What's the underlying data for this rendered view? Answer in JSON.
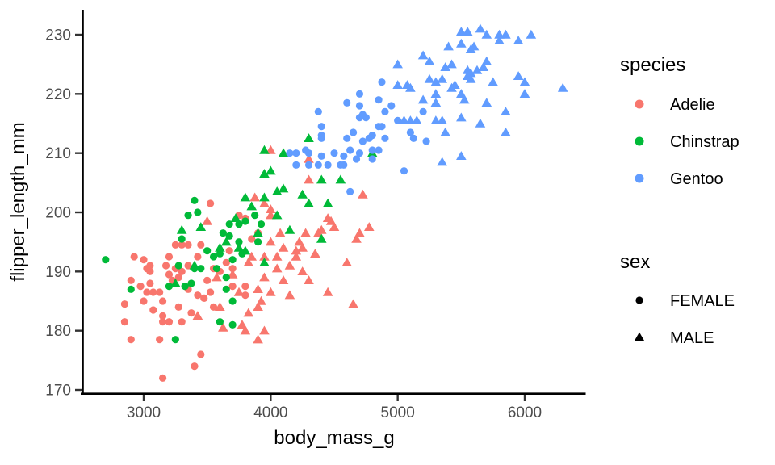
{
  "chart_data": {
    "type": "scatter",
    "title": "",
    "xlabel": "body_mass_g",
    "ylabel": "flipper_length_mm",
    "xlim": [
      2525,
      6475
    ],
    "ylim": [
      169.5,
      234.3
    ],
    "x_ticks": [
      3000,
      4000,
      5000,
      6000
    ],
    "y_ticks": [
      170,
      180,
      190,
      200,
      210,
      220,
      230
    ],
    "grid": false,
    "legend_position": "right",
    "legend_titles": {
      "color": "species",
      "shape": "sex"
    },
    "species_order": [
      "Adelie",
      "Chinstrap",
      "Gentoo"
    ],
    "sex_order": [
      "FEMALE",
      "MALE"
    ],
    "colors": {
      "Adelie": "#F8766D",
      "Chinstrap": "#00BA38",
      "Gentoo": "#619CFF"
    },
    "shapes": {
      "FEMALE": "circle",
      "MALE": "triangle"
    },
    "point_format": "[body_mass_g, flipper_length_mm, species_index, sex_index]",
    "points": [
      [
        3525,
        201.5,
        0,
        0
      ],
      [
        3250,
        194.5,
        0,
        0
      ],
      [
        3300,
        194.5,
        0,
        0
      ],
      [
        3350,
        194.5,
        0,
        0
      ],
      [
        3450,
        194.5,
        0,
        0
      ],
      [
        3200,
        192.5,
        0,
        0
      ],
      [
        3425,
        192.5,
        0,
        0
      ],
      [
        2925,
        192.5,
        0,
        0
      ],
      [
        3000,
        192,
        0,
        0
      ],
      [
        3050,
        191,
        0,
        0
      ],
      [
        3175,
        191,
        0,
        0
      ],
      [
        3350,
        191,
        0,
        0
      ],
      [
        3750,
        199.5,
        0,
        0
      ],
      [
        3800,
        199,
        0,
        0
      ],
      [
        3850,
        195.5,
        0,
        0
      ],
      [
        3900,
        196.5,
        0,
        0
      ],
      [
        3675,
        193.5,
        0,
        0
      ],
      [
        2900,
        188.5,
        0,
        0
      ],
      [
        3025,
        190.5,
        0,
        0
      ],
      [
        3050,
        190,
        0,
        0
      ],
      [
        3050,
        188,
        0,
        0
      ],
      [
        3200,
        189.5,
        0,
        0
      ],
      [
        3250,
        190.5,
        0,
        0
      ],
      [
        3300,
        190,
        0,
        0
      ],
      [
        3275,
        189,
        0,
        0
      ],
      [
        3025,
        186.5,
        0,
        0
      ],
      [
        3075,
        186.5,
        0,
        0
      ],
      [
        3125,
        186.5,
        0,
        0
      ],
      [
        3000,
        185,
        0,
        0
      ],
      [
        3150,
        185,
        0,
        0
      ],
      [
        2850,
        184.5,
        0,
        0
      ],
      [
        3075,
        183.5,
        0,
        0
      ],
      [
        3150,
        182.5,
        0,
        0
      ],
      [
        3200,
        181.5,
        0,
        0
      ],
      [
        3150,
        181.5,
        0,
        0
      ],
      [
        3300,
        181.5,
        0,
        0
      ],
      [
        2850,
        181.5,
        0,
        0
      ],
      [
        2900,
        178.5,
        0,
        0
      ],
      [
        3450,
        176,
        0,
        0
      ],
      [
        3400,
        174,
        0,
        0
      ],
      [
        3150,
        172,
        0,
        0
      ],
      [
        3700,
        187.5,
        0,
        0
      ],
      [
        3800,
        187.5,
        0,
        0
      ],
      [
        3800,
        186,
        0,
        0
      ],
      [
        3350,
        187,
        0,
        0
      ],
      [
        3425,
        186,
        0,
        0
      ],
      [
        3550,
        190.5,
        0,
        0
      ],
      [
        3275,
        184,
        0,
        0
      ],
      [
        3375,
        183,
        0,
        0
      ],
      [
        3475,
        185.5,
        0,
        0
      ],
      [
        3600,
        190,
        0,
        0
      ],
      [
        3700,
        190.5,
        0,
        0
      ],
      [
        2975,
        187.5,
        0,
        0
      ],
      [
        3225,
        188.5,
        0,
        0
      ],
      [
        3500,
        188.5,
        0,
        0
      ],
      [
        3525,
        186.5,
        0,
        0
      ],
      [
        3650,
        191.5,
        0,
        0
      ],
      [
        3125,
        178.5,
        0,
        0
      ],
      [
        3550,
        184,
        0,
        0
      ],
      [
        4000,
        210.5,
        0,
        1
      ],
      [
        4300,
        209,
        0,
        1
      ],
      [
        4300,
        205.5,
        0,
        1
      ],
      [
        3875,
        202.5,
        0,
        1
      ],
      [
        3950,
        201.5,
        0,
        1
      ],
      [
        4000,
        200.5,
        0,
        1
      ],
      [
        4000,
        199.5,
        0,
        1
      ],
      [
        4450,
        199,
        0,
        1
      ],
      [
        4475,
        198.5,
        0,
        1
      ],
      [
        4500,
        197.5,
        0,
        1
      ],
      [
        4725,
        203,
        0,
        1
      ],
      [
        4775,
        197.5,
        0,
        1
      ],
      [
        4700,
        196.5,
        0,
        1
      ],
      [
        4675,
        195.5,
        0,
        1
      ],
      [
        4600,
        191.5,
        0,
        1
      ],
      [
        4000,
        195,
        0,
        1
      ],
      [
        4075,
        196.5,
        0,
        1
      ],
      [
        4275,
        196.5,
        0,
        1
      ],
      [
        4375,
        196.5,
        0,
        1
      ],
      [
        4400,
        197,
        0,
        1
      ],
      [
        4225,
        195,
        0,
        1
      ],
      [
        4250,
        194,
        0,
        1
      ],
      [
        4200,
        193.5,
        0,
        1
      ],
      [
        3950,
        192.5,
        0,
        1
      ],
      [
        4050,
        192.5,
        0,
        1
      ],
      [
        4200,
        192.5,
        0,
        1
      ],
      [
        3825,
        191.5,
        0,
        1
      ],
      [
        3500,
        198.5,
        0,
        1
      ],
      [
        3425,
        182.5,
        0,
        1
      ],
      [
        3950,
        189,
        0,
        1
      ],
      [
        4150,
        191,
        0,
        1
      ],
      [
        4250,
        190,
        0,
        1
      ],
      [
        4100,
        188.5,
        0,
        1
      ],
      [
        4300,
        188.5,
        0,
        1
      ],
      [
        4450,
        186.5,
        0,
        1
      ],
      [
        3925,
        185,
        0,
        1
      ],
      [
        3900,
        184,
        0,
        1
      ],
      [
        3600,
        184,
        0,
        1
      ],
      [
        3775,
        181,
        0,
        1
      ],
      [
        3625,
        180.5,
        0,
        1
      ],
      [
        3800,
        180,
        0,
        1
      ],
      [
        3950,
        180,
        0,
        1
      ],
      [
        3900,
        178.5,
        0,
        1
      ],
      [
        4650,
        184.5,
        0,
        1
      ],
      [
        3700,
        189.5,
        0,
        1
      ],
      [
        3850,
        192.5,
        0,
        1
      ],
      [
        4100,
        194,
        0,
        1
      ],
      [
        4050,
        190.5,
        0,
        1
      ],
      [
        3750,
        186.5,
        0,
        1
      ],
      [
        3900,
        187,
        0,
        1
      ],
      [
        4150,
        186,
        0,
        1
      ],
      [
        3825,
        183,
        0,
        1
      ],
      [
        4000,
        186.5,
        0,
        1
      ],
      [
        3575,
        189,
        0,
        1
      ],
      [
        4350,
        193,
        0,
        1
      ],
      [
        2700,
        192,
        1,
        0
      ],
      [
        3400,
        202,
        1,
        0
      ],
      [
        3425,
        200,
        1,
        0
      ],
      [
        3350,
        199.5,
        1,
        0
      ],
      [
        3500,
        193.5,
        1,
        0
      ],
      [
        3275,
        191,
        1,
        0
      ],
      [
        3875,
        199.5,
        1,
        0
      ],
      [
        3925,
        198,
        1,
        0
      ],
      [
        3675,
        198,
        1,
        0
      ],
      [
        3750,
        198,
        1,
        0
      ],
      [
        3800,
        198.5,
        1,
        0
      ],
      [
        3625,
        196.5,
        1,
        0
      ],
      [
        3675,
        196,
        1,
        0
      ],
      [
        3750,
        195,
        1,
        0
      ],
      [
        3900,
        195,
        1,
        0
      ],
      [
        3600,
        193,
        1,
        0
      ],
      [
        3700,
        192,
        1,
        0
      ],
      [
        3575,
        190.5,
        1,
        0
      ],
      [
        3650,
        189,
        1,
        0
      ],
      [
        3650,
        187,
        1,
        0
      ],
      [
        3700,
        185,
        1,
        0
      ],
      [
        3600,
        181.5,
        1,
        0
      ],
      [
        3700,
        181,
        1,
        0
      ],
      [
        3250,
        178.5,
        1,
        0
      ],
      [
        2900,
        187,
        1,
        0
      ],
      [
        3400,
        190.5,
        1,
        0
      ],
      [
        3450,
        190.5,
        1,
        0
      ],
      [
        3200,
        187.5,
        1,
        0
      ],
      [
        3325,
        187.5,
        1,
        0
      ],
      [
        3375,
        188,
        1,
        0
      ],
      [
        3550,
        192.5,
        1,
        0
      ],
      [
        3300,
        195.5,
        1,
        0
      ],
      [
        3775,
        193,
        1,
        0
      ],
      [
        4300,
        212.5,
        1,
        1
      ],
      [
        3950,
        210.5,
        1,
        1
      ],
      [
        4100,
        210,
        1,
        1
      ],
      [
        4000,
        207,
        1,
        1
      ],
      [
        3950,
        206.5,
        1,
        1
      ],
      [
        4400,
        205.5,
        1,
        1
      ],
      [
        4550,
        205.5,
        1,
        1
      ],
      [
        4050,
        203.5,
        1,
        1
      ],
      [
        4100,
        204,
        1,
        1
      ],
      [
        3800,
        202.5,
        1,
        1
      ],
      [
        4300,
        201.5,
        1,
        1
      ],
      [
        4450,
        201.5,
        1,
        1
      ],
      [
        4800,
        210,
        1,
        1
      ],
      [
        3300,
        197,
        1,
        1
      ],
      [
        3450,
        197.5,
        1,
        1
      ],
      [
        4150,
        197,
        1,
        1
      ],
      [
        4400,
        195.5,
        1,
        1
      ],
      [
        3750,
        194,
        1,
        1
      ],
      [
        3800,
        193.5,
        1,
        1
      ],
      [
        3950,
        191.5,
        1,
        1
      ],
      [
        3400,
        191,
        1,
        1
      ],
      [
        3250,
        188,
        1,
        1
      ],
      [
        3900,
        196.5,
        1,
        1
      ],
      [
        4050,
        199.5,
        1,
        1
      ],
      [
        3650,
        195,
        1,
        1
      ],
      [
        3850,
        201,
        1,
        1
      ],
      [
        4250,
        203,
        1,
        1
      ],
      [
        3725,
        199,
        1,
        1
      ],
      [
        3600,
        194,
        1,
        1
      ],
      [
        3950,
        202.5,
        1,
        1
      ],
      [
        4375,
        217,
        2,
        0
      ],
      [
        4400,
        214.5,
        2,
        0
      ],
      [
        4400,
        213,
        2,
        0
      ],
      [
        4875,
        222,
        2,
        0
      ],
      [
        4700,
        220,
        2,
        0
      ],
      [
        4700,
        218,
        2,
        0
      ],
      [
        4600,
        218.5,
        2,
        0
      ],
      [
        4850,
        219,
        2,
        0
      ],
      [
        4950,
        218,
        2,
        0
      ],
      [
        4900,
        217,
        2,
        0
      ],
      [
        4700,
        216,
        2,
        0
      ],
      [
        4750,
        216,
        2,
        0
      ],
      [
        4725,
        216.5,
        2,
        0
      ],
      [
        4850,
        214.5,
        2,
        0
      ],
      [
        4875,
        214.5,
        2,
        0
      ],
      [
        5000,
        215.5,
        2,
        0
      ],
      [
        5200,
        217,
        2,
        0
      ],
      [
        5100,
        213.5,
        2,
        0
      ],
      [
        4650,
        213.5,
        2,
        0
      ],
      [
        4800,
        213,
        2,
        0
      ],
      [
        4600,
        212.5,
        2,
        0
      ],
      [
        4725,
        212,
        2,
        0
      ],
      [
        4775,
        212.5,
        2,
        0
      ],
      [
        4900,
        212.5,
        2,
        0
      ],
      [
        5125,
        212.5,
        2,
        0
      ],
      [
        5225,
        212,
        2,
        0
      ],
      [
        4625,
        210.5,
        2,
        0
      ],
      [
        4700,
        210,
        2,
        0
      ],
      [
        4800,
        210.5,
        2,
        0
      ],
      [
        4850,
        210.5,
        2,
        0
      ],
      [
        4575,
        209.5,
        2,
        0
      ],
      [
        4675,
        209,
        2,
        0
      ],
      [
        4800,
        209,
        2,
        0
      ],
      [
        4575,
        208,
        2,
        0
      ],
      [
        5050,
        207,
        2,
        0
      ],
      [
        4625,
        203.5,
        2,
        0
      ],
      [
        4150,
        210,
        2,
        0
      ],
      [
        4200,
        210,
        2,
        0
      ],
      [
        4275,
        210.5,
        2,
        0
      ],
      [
        4300,
        210,
        2,
        0
      ],
      [
        4200,
        208,
        2,
        0
      ],
      [
        4300,
        208,
        2,
        0
      ],
      [
        4375,
        208,
        2,
        0
      ],
      [
        4400,
        209.5,
        2,
        0
      ],
      [
        4450,
        208,
        2,
        0
      ],
      [
        4500,
        210,
        2,
        0
      ],
      [
        4550,
        208,
        2,
        0
      ],
      [
        4400,
        212.5,
        2,
        0
      ],
      [
        5500,
        230.5,
        2,
        1
      ],
      [
        5550,
        230.5,
        2,
        1
      ],
      [
        5400,
        228,
        2,
        1
      ],
      [
        5500,
        228.5,
        2,
        1
      ],
      [
        5575,
        227.5,
        2,
        1
      ],
      [
        5200,
        226.5,
        2,
        1
      ],
      [
        5250,
        225.5,
        2,
        1
      ],
      [
        5000,
        225,
        2,
        1
      ],
      [
        5375,
        224.5,
        2,
        1
      ],
      [
        5425,
        225,
        2,
        1
      ],
      [
        5550,
        224,
        2,
        1
      ],
      [
        5550,
        223,
        2,
        1
      ],
      [
        5250,
        222.5,
        2,
        1
      ],
      [
        5300,
        222,
        2,
        1
      ],
      [
        5350,
        222.5,
        2,
        1
      ],
      [
        5000,
        221.5,
        2,
        1
      ],
      [
        5075,
        221.5,
        2,
        1
      ],
      [
        5100,
        221,
        2,
        1
      ],
      [
        5425,
        221,
        2,
        1
      ],
      [
        5450,
        221.5,
        2,
        1
      ],
      [
        5300,
        220,
        2,
        1
      ],
      [
        5200,
        219,
        2,
        1
      ],
      [
        5300,
        218.5,
        2,
        1
      ],
      [
        5500,
        220,
        2,
        1
      ],
      [
        5525,
        219,
        2,
        1
      ],
      [
        5300,
        215.5,
        2,
        1
      ],
      [
        5350,
        215.5,
        2,
        1
      ],
      [
        5500,
        216,
        2,
        1
      ],
      [
        5050,
        215.5,
        2,
        1
      ],
      [
        5100,
        215.5,
        2,
        1
      ],
      [
        5150,
        215.5,
        2,
        1
      ],
      [
        5375,
        213.5,
        2,
        1
      ],
      [
        5650,
        231,
        2,
        1
      ],
      [
        5700,
        230,
        2,
        1
      ],
      [
        5800,
        230,
        2,
        1
      ],
      [
        5850,
        230,
        2,
        1
      ],
      [
        5800,
        229,
        2,
        1
      ],
      [
        5950,
        229,
        2,
        1
      ],
      [
        6050,
        230,
        2,
        1
      ],
      [
        5600,
        228,
        2,
        1
      ],
      [
        5700,
        225.5,
        2,
        1
      ],
      [
        5675,
        224.5,
        2,
        1
      ],
      [
        5625,
        224,
        2,
        1
      ],
      [
        5575,
        223.5,
        2,
        1
      ],
      [
        5575,
        222.5,
        2,
        1
      ],
      [
        5750,
        222,
        2,
        1
      ],
      [
        5950,
        223,
        2,
        1
      ],
      [
        6000,
        222,
        2,
        1
      ],
      [
        6300,
        221,
        2,
        1
      ],
      [
        6000,
        220,
        2,
        1
      ],
      [
        5700,
        218.5,
        2,
        1
      ],
      [
        5850,
        217,
        2,
        1
      ],
      [
        5650,
        215,
        2,
        1
      ],
      [
        5850,
        213.5,
        2,
        1
      ],
      [
        5350,
        208.5,
        2,
        1
      ],
      [
        5500,
        209.5,
        2,
        1
      ]
    ]
  }
}
